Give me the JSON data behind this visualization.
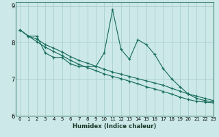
{
  "xlabel": "Humidex (Indice chaleur)",
  "background_color": "#cce8e8",
  "grid_color": "#aacfcf",
  "line_color": "#1a6e5e",
  "xlim": [
    -0.5,
    23
  ],
  "ylim": [
    6.0,
    9.1
  ],
  "yticks": [
    6,
    7,
    8,
    9
  ],
  "xticks": [
    0,
    1,
    2,
    3,
    4,
    5,
    6,
    7,
    8,
    9,
    10,
    11,
    12,
    13,
    14,
    15,
    16,
    17,
    18,
    19,
    20,
    21,
    22,
    23
  ],
  "series1_x": [
    0,
    1,
    2,
    3,
    4,
    5,
    6,
    7,
    8,
    9,
    10,
    11,
    12,
    13,
    14,
    15,
    16,
    17,
    18,
    19,
    20,
    21,
    22,
    23
  ],
  "series1_y": [
    8.35,
    8.18,
    8.18,
    7.72,
    7.6,
    7.6,
    7.42,
    7.35,
    7.35,
    7.35,
    7.72,
    8.9,
    7.82,
    7.55,
    8.08,
    7.95,
    7.68,
    7.3,
    7.02,
    6.8,
    6.6,
    6.48,
    6.42,
    6.38
  ],
  "series2_x": [
    0,
    1,
    2,
    3,
    4,
    5,
    6,
    7,
    8,
    9,
    10,
    11,
    12,
    13,
    14,
    15,
    16,
    17,
    18,
    19,
    20,
    21,
    22,
    23
  ],
  "series2_y": [
    8.35,
    8.18,
    8.1,
    7.95,
    7.85,
    7.75,
    7.62,
    7.52,
    7.44,
    7.36,
    7.28,
    7.2,
    7.14,
    7.08,
    7.02,
    6.96,
    6.9,
    6.84,
    6.76,
    6.68,
    6.6,
    6.54,
    6.48,
    6.42
  ],
  "series3_x": [
    0,
    1,
    2,
    3,
    4,
    5,
    6,
    7,
    8,
    9,
    10,
    11,
    12,
    13,
    14,
    15,
    16,
    17,
    18,
    19,
    20,
    21,
    22,
    23
  ],
  "series3_y": [
    8.35,
    8.18,
    8.03,
    7.88,
    7.76,
    7.65,
    7.52,
    7.41,
    7.32,
    7.24,
    7.15,
    7.08,
    7.02,
    6.95,
    6.88,
    6.8,
    6.74,
    6.67,
    6.6,
    6.52,
    6.45,
    6.4,
    6.38,
    6.36
  ]
}
